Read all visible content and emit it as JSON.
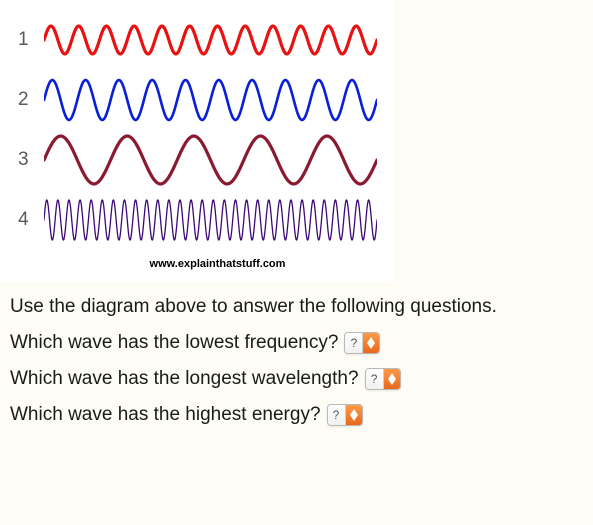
{
  "diagram": {
    "background": "#ffffff",
    "label_color": "#5a5a5a",
    "label_fontsize": 19,
    "waves": [
      {
        "label": "1",
        "color": "#e81212",
        "cycles": 12,
        "amplitude": 14,
        "stroke": 3.2
      },
      {
        "label": "2",
        "color": "#0a1fd8",
        "cycles": 10,
        "amplitude": 20,
        "stroke": 2.6
      },
      {
        "label": "3",
        "color": "#8a1a2f",
        "cycles": 5,
        "amplitude": 24,
        "stroke": 3.2
      },
      {
        "label": "4",
        "color": "#3e0a78",
        "cycles": 30,
        "amplitude": 20,
        "stroke": 1.3
      }
    ],
    "attribution": "www.explainthatstuff.com"
  },
  "intro": "Use the diagram above to answer the following questions.",
  "questions": [
    {
      "text": "Which wave has the lowest frequency?",
      "current": "?"
    },
    {
      "text": "Which wave has the longest wavelength?",
      "current": "?"
    },
    {
      "text": "Which wave has the highest energy?",
      "current": "?"
    }
  ],
  "selector_style": {
    "arrow_bg_top": "#ff9a4a",
    "arrow_bg_bottom": "#e8671b",
    "arrow_color": "#ffffff"
  }
}
